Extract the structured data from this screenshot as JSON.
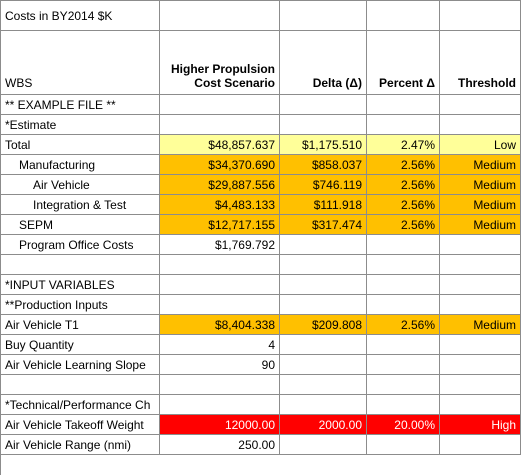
{
  "sheet": {
    "title": "Costs in BY2014 $K",
    "headers": {
      "wbs": "WBS",
      "scenario": "Higher Propulsion Cost Scenario",
      "delta": "Delta (Δ)",
      "percent": "Percent Δ",
      "threshold": "Threshold"
    },
    "rows": [
      {
        "label": "** EXAMPLE FILE **",
        "value": "",
        "delta": "",
        "percent": "",
        "threshold": ""
      },
      {
        "label": "*Estimate",
        "value": "",
        "delta": "",
        "percent": "",
        "threshold": ""
      },
      {
        "label": "Total",
        "value": "$48,857.637",
        "delta": "$1,175.510",
        "percent": "2.47%",
        "threshold": "Low"
      },
      {
        "label": "Manufacturing",
        "value": "$34,370.690",
        "delta": "$858.037",
        "percent": "2.56%",
        "threshold": "Medium"
      },
      {
        "label": "Air Vehicle",
        "value": "$29,887.556",
        "delta": "$746.119",
        "percent": "2.56%",
        "threshold": "Medium"
      },
      {
        "label": "Integration & Test",
        "value": "$4,483.133",
        "delta": "$111.918",
        "percent": "2.56%",
        "threshold": "Medium"
      },
      {
        "label": "SEPM",
        "value": "$12,717.155",
        "delta": "$317.474",
        "percent": "2.56%",
        "threshold": "Medium"
      },
      {
        "label": "Program Office Costs",
        "value": "$1,769.792",
        "delta": "",
        "percent": "",
        "threshold": ""
      },
      {
        "label": "",
        "value": "",
        "delta": "",
        "percent": "",
        "threshold": ""
      },
      {
        "label": "*INPUT VARIABLES",
        "value": "",
        "delta": "",
        "percent": "",
        "threshold": ""
      },
      {
        "label": "**Production Inputs",
        "value": "",
        "delta": "",
        "percent": "",
        "threshold": ""
      },
      {
        "label": "Air Vehicle T1",
        "value": "$8,404.338",
        "delta": "$209.808",
        "percent": "2.56%",
        "threshold": "Medium"
      },
      {
        "label": "Buy Quantity",
        "value": "4",
        "delta": "",
        "percent": "",
        "threshold": ""
      },
      {
        "label": "Air Vehicle Learning Slope",
        "value": "90",
        "delta": "",
        "percent": "",
        "threshold": ""
      },
      {
        "label": "",
        "value": "",
        "delta": "",
        "percent": "",
        "threshold": ""
      },
      {
        "label": "*Technical/Performance Ch",
        "value": "",
        "delta": "",
        "percent": "",
        "threshold": ""
      },
      {
        "label": "Air Vehicle Takeoff Weight",
        "value": "12000.00",
        "delta": "2000.00",
        "percent": "20.00%",
        "threshold": "High"
      },
      {
        "label": "Air Vehicle Range (nmi)",
        "value": "250.00",
        "delta": "",
        "percent": "",
        "threshold": ""
      }
    ],
    "colors": {
      "yellow": "#ffff99",
      "orange": "#ffc000",
      "red": "#ff0000",
      "grid": "#8c8c8c"
    }
  }
}
